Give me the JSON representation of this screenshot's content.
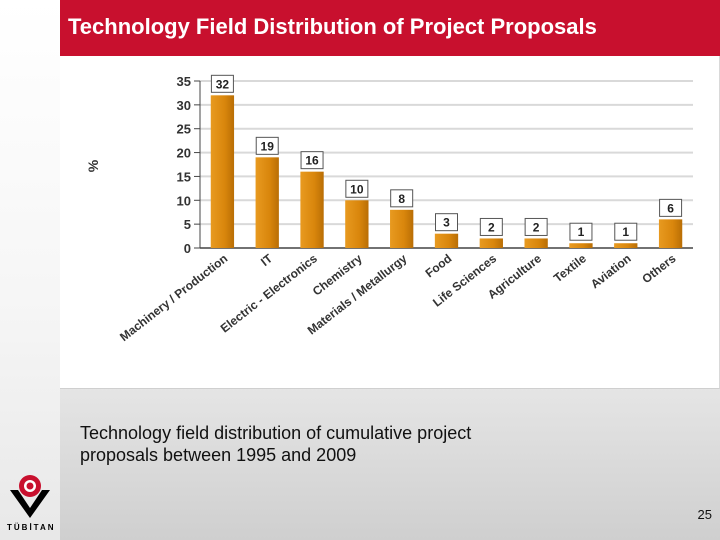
{
  "slide": {
    "title": "Technology Field Distribution of Project Proposals",
    "caption_line1": "Technology field distribution of cumulative project",
    "caption_line2": "proposals  between 1995 and 2009",
    "page_number": "25",
    "logo_text": "TÜBİTAN",
    "colors": {
      "title_bg": "#c8102e",
      "bar": "#d9860c",
      "grid": "#d9d9d9",
      "logo_red": "#c8102e"
    }
  },
  "chart_data": {
    "type": "bar",
    "title": "",
    "xlabel": "",
    "ylabel": "%",
    "ylim": [
      0,
      35
    ],
    "yticks": [
      0,
      5,
      10,
      15,
      20,
      25,
      30,
      35
    ],
    "ytick_labels": [
      "0",
      "5",
      "10",
      "15",
      "20",
      "25",
      "30",
      "35"
    ],
    "grid": true,
    "categories": [
      "Machinery / Production",
      "IT",
      "Electric - Electronics",
      "Chemistry",
      "Materials / Metallurgy",
      "Food",
      "Life Sciences",
      "Agriculture",
      "Textile",
      "Aviation",
      "Others"
    ],
    "values": [
      32,
      19,
      16,
      10,
      8,
      3,
      2,
      2,
      1,
      1,
      6
    ],
    "data_labels": [
      "32",
      "19",
      "16",
      "10",
      "8",
      "3",
      "2",
      "2",
      "1",
      "1",
      "6"
    ]
  }
}
